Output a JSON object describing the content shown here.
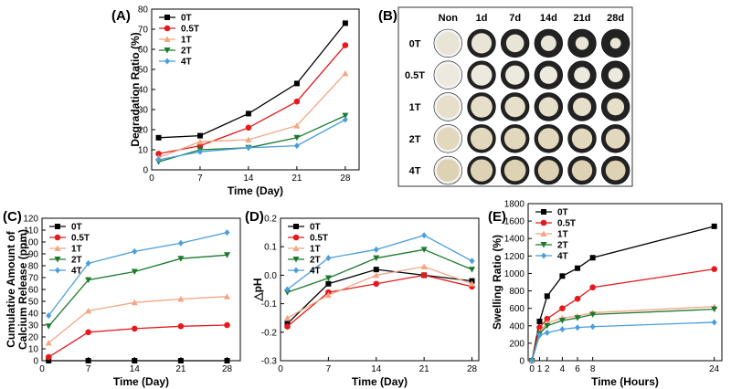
{
  "grid_image": {
    "panel_label": "(B)",
    "col_labels": [
      "Non",
      "1d",
      "7d",
      "14d",
      "21d",
      "28d"
    ],
    "row_labels": [
      "0T",
      "0.5T",
      "1T",
      "2T",
      "4T"
    ]
  },
  "chart_data": [
    {
      "panel_label": "(A)",
      "type": "line",
      "xlabel": "Time (Day)",
      "ylabel": "Degradation Ratio (%)",
      "x": [
        1,
        7,
        14,
        21,
        28
      ],
      "xticks": [
        0,
        7,
        14,
        21,
        28
      ],
      "xlim": [
        0,
        30
      ],
      "ylim": [
        0,
        80
      ],
      "yticks": [
        0,
        10,
        20,
        30,
        40,
        50,
        60,
        70,
        80
      ],
      "legend_position": "top-left",
      "series": [
        {
          "name": "0T",
          "values": [
            16,
            17,
            28,
            43,
            73
          ],
          "color": "#000000",
          "marker": "square"
        },
        {
          "name": "0.5T",
          "values": [
            8,
            12,
            21,
            34,
            62
          ],
          "color": "#e41a1c",
          "marker": "circle"
        },
        {
          "name": "1T",
          "values": [
            6,
            14,
            15,
            22,
            48
          ],
          "color": "#f4a582",
          "marker": "triangle-up"
        },
        {
          "name": "2T",
          "values": [
            4,
            10,
            11,
            16,
            27
          ],
          "color": "#1a7a2e",
          "marker": "triangle-down"
        },
        {
          "name": "4T",
          "values": [
            5,
            9,
            11,
            12,
            25
          ],
          "color": "#4a9ee0",
          "marker": "diamond"
        }
      ]
    },
    {
      "panel_label": "(C)",
      "type": "line",
      "xlabel": "Time (Day)",
      "ylabel": "Cumulative Amount of Calcium Release (ppm)",
      "ylabel_lines": [
        "Cumulative Amount of",
        "Calcium Release (ppm)"
      ],
      "x": [
        1,
        7,
        14,
        21,
        28
      ],
      "xticks": [
        0,
        7,
        14,
        21,
        28
      ],
      "xlim": [
        0,
        30
      ],
      "ylim": [
        0,
        120
      ],
      "yticks": [
        0,
        10,
        20,
        30,
        40,
        50,
        60,
        70,
        80,
        90,
        100,
        110,
        120
      ],
      "legend_position": "top-left",
      "series": [
        {
          "name": "0T",
          "values": [
            0,
            0,
            0,
            0,
            0
          ],
          "color": "#000000",
          "marker": "square"
        },
        {
          "name": "0.5T",
          "values": [
            3,
            24,
            27,
            29,
            30
          ],
          "color": "#e41a1c",
          "marker": "circle"
        },
        {
          "name": "1T",
          "values": [
            15,
            42,
            49,
            52,
            54
          ],
          "color": "#f4a582",
          "marker": "triangle-up"
        },
        {
          "name": "2T",
          "values": [
            29,
            68,
            75,
            86,
            89
          ],
          "color": "#1a7a2e",
          "marker": "triangle-down"
        },
        {
          "name": "4T",
          "values": [
            38,
            82,
            92,
            99,
            108
          ],
          "color": "#4a9ee0",
          "marker": "diamond"
        }
      ]
    },
    {
      "panel_label": "(D)",
      "type": "line",
      "xlabel": "Time (Day)",
      "ylabel": "△pH",
      "x": [
        1,
        7,
        14,
        21,
        28
      ],
      "xticks": [
        0,
        7,
        14,
        21,
        28
      ],
      "xlim": [
        0,
        29
      ],
      "ylim": [
        -0.3,
        0.2
      ],
      "yticks": [
        -0.3,
        -0.2,
        -0.1,
        0.0,
        0.1,
        0.2
      ],
      "ytick_labels": [
        "-0.3",
        "-0.2",
        "-0.1",
        "0.0",
        "0.1",
        "0.2"
      ],
      "legend_position": "top-left",
      "series": [
        {
          "name": "0T",
          "values": [
            -0.17,
            -0.03,
            0.02,
            0.0,
            -0.02
          ],
          "color": "#000000",
          "marker": "square"
        },
        {
          "name": "0.5T",
          "values": [
            -0.18,
            -0.06,
            -0.03,
            0.0,
            -0.04
          ],
          "color": "#e41a1c",
          "marker": "circle"
        },
        {
          "name": "1T",
          "values": [
            -0.15,
            -0.07,
            0.0,
            0.03,
            -0.03
          ],
          "color": "#f4a582",
          "marker": "triangle-up"
        },
        {
          "name": "2T",
          "values": [
            -0.06,
            -0.01,
            0.06,
            0.09,
            0.02
          ],
          "color": "#1a7a2e",
          "marker": "triangle-down"
        },
        {
          "name": "4T",
          "values": [
            -0.05,
            0.06,
            0.09,
            0.14,
            0.05
          ],
          "color": "#4a9ee0",
          "marker": "diamond"
        }
      ]
    },
    {
      "panel_label": "(E)",
      "type": "line",
      "xlabel": "Time (Hours)",
      "ylabel": "Swelling Ratio (%)",
      "x": [
        0,
        1,
        2,
        4,
        6,
        8,
        24
      ],
      "xticks": [
        0,
        1,
        2,
        4,
        6,
        8,
        24
      ],
      "xlim": [
        -0.5,
        25
      ],
      "ylim": [
        0,
        1800
      ],
      "yticks": [
        0,
        200,
        400,
        600,
        800,
        1000,
        1200,
        1400,
        1600,
        1800
      ],
      "legend_position": "top-left",
      "series": [
        {
          "name": "0T",
          "values": [
            0,
            450,
            740,
            970,
            1060,
            1180,
            1540
          ],
          "color": "#000000",
          "marker": "square"
        },
        {
          "name": "0.5T",
          "values": [
            0,
            380,
            480,
            600,
            710,
            840,
            1050
          ],
          "color": "#e41a1c",
          "marker": "circle"
        },
        {
          "name": "1T",
          "values": [
            0,
            330,
            430,
            490,
            510,
            550,
            620
          ],
          "color": "#f4a582",
          "marker": "triangle-up"
        },
        {
          "name": "2T",
          "values": [
            0,
            310,
            400,
            460,
            490,
            530,
            590
          ],
          "color": "#1a7a2e",
          "marker": "triangle-down"
        },
        {
          "name": "4T",
          "values": [
            0,
            290,
            320,
            360,
            380,
            390,
            440
          ],
          "color": "#4a9ee0",
          "marker": "diamond"
        }
      ]
    }
  ]
}
